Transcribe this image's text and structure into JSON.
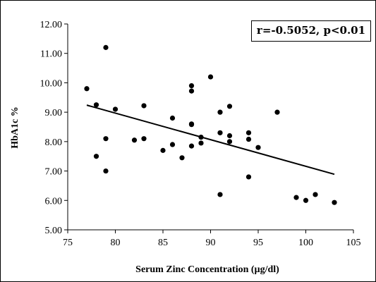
{
  "chart_data": {
    "type": "scatter",
    "title": "",
    "xlabel": "Serum Zinc Concentration (µg/dl)",
    "ylabel": "HbA1c %",
    "xlim": [
      75,
      105
    ],
    "ylim": [
      5.0,
      12.0
    ],
    "xticks": [
      "75",
      "80",
      "85",
      "90",
      "95",
      "100",
      "105"
    ],
    "yticks": [
      "5.00",
      "6.00",
      "7.00",
      "8.00",
      "9.00",
      "10.00",
      "11.00",
      "12.00"
    ],
    "annotation": "r=-0.5052, p<0.01",
    "grid": false,
    "series": [
      {
        "points": [
          [
            77,
            9.8
          ],
          [
            78,
            9.25
          ],
          [
            78,
            7.5
          ],
          [
            79,
            11.2
          ],
          [
            79,
            8.1
          ],
          [
            79,
            7.0
          ],
          [
            80,
            9.1
          ],
          [
            82,
            8.05
          ],
          [
            83,
            9.22
          ],
          [
            83,
            8.1
          ],
          [
            85,
            7.7
          ],
          [
            86,
            8.8
          ],
          [
            86,
            7.9
          ],
          [
            87,
            7.45
          ],
          [
            88,
            9.9
          ],
          [
            88,
            9.72
          ],
          [
            88,
            8.6
          ],
          [
            88,
            8.58
          ],
          [
            88,
            7.85
          ],
          [
            89,
            8.15
          ],
          [
            89,
            7.95
          ],
          [
            90,
            10.2
          ],
          [
            91,
            9.0
          ],
          [
            91,
            8.3
          ],
          [
            91,
            6.2
          ],
          [
            92,
            9.2
          ],
          [
            92,
            8.2
          ],
          [
            92,
            8.0
          ],
          [
            94,
            8.3
          ],
          [
            94,
            8.08
          ],
          [
            94,
            6.8
          ],
          [
            95,
            7.8
          ],
          [
            97,
            9.0
          ],
          [
            99,
            6.1
          ],
          [
            100,
            6.0
          ],
          [
            101,
            6.2
          ],
          [
            103,
            5.93
          ]
        ],
        "color": "#000000"
      }
    ],
    "trendline": {
      "x": [
        77,
        103
      ],
      "y": [
        9.24,
        6.89
      ],
      "color": "#000000"
    }
  }
}
